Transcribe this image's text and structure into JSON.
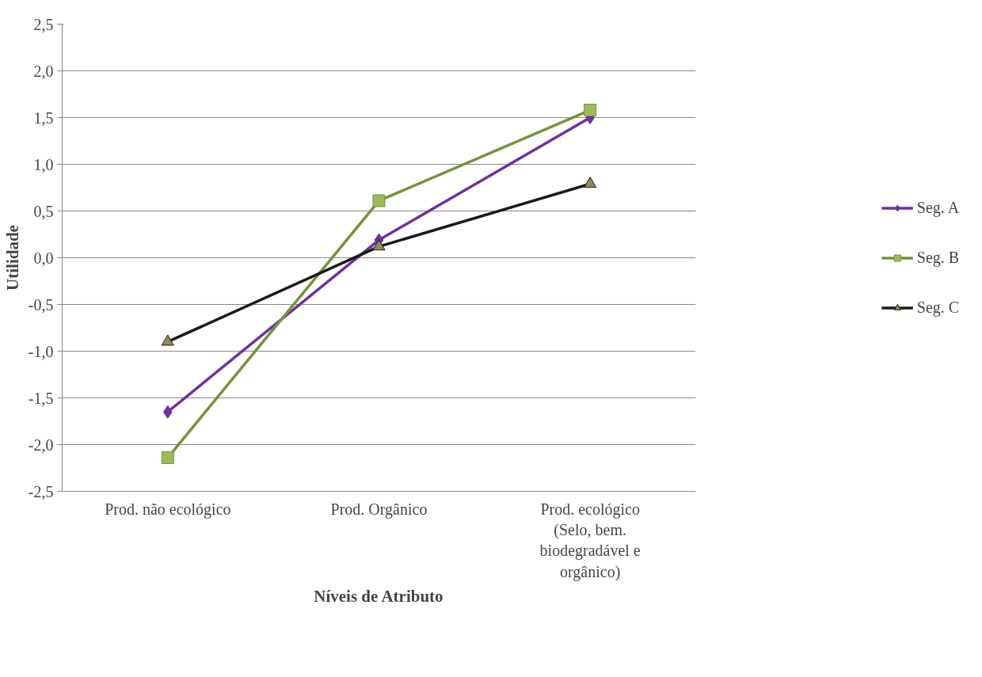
{
  "chart_data": {
    "type": "line",
    "xlabel": "Níveis de Atributo",
    "ylabel": "Utilidade",
    "categories": [
      "Prod. não ecológico",
      "Prod. Orgânico",
      "Prod. ecológico (Selo, bem. biodegradável e orgânico)"
    ],
    "series": [
      {
        "name": "Seg. A",
        "color": "#7030a0",
        "marker": "diamond",
        "values": [
          -1.65,
          0.19,
          1.5
        ]
      },
      {
        "name": "Seg. B",
        "color": "#77933c",
        "marker": "square",
        "values": [
          -2.14,
          0.61,
          1.58
        ]
      },
      {
        "name": "Seg. C",
        "color": "#1a1a1a",
        "marker": "triangle",
        "values": [
          -0.9,
          0.12,
          0.79
        ]
      }
    ],
    "ylim": [
      -2.5,
      2.5
    ],
    "yticks": [
      {
        "value": -2.5,
        "label": "-2,5"
      },
      {
        "value": -2.0,
        "label": "-2,0"
      },
      {
        "value": -1.5,
        "label": "-1,5"
      },
      {
        "value": -1.0,
        "label": "-1,0"
      },
      {
        "value": -0.5,
        "label": "-0,5"
      },
      {
        "value": 0.0,
        "label": "0,0"
      },
      {
        "value": 0.5,
        "label": "0,5"
      },
      {
        "value": 1.0,
        "label": "1,0"
      },
      {
        "value": 1.5,
        "label": "1,5"
      },
      {
        "value": 2.0,
        "label": "2,0"
      },
      {
        "value": 2.5,
        "label": "2,5"
      }
    ],
    "grid": "y",
    "legend": "right",
    "line_style": "solid"
  }
}
